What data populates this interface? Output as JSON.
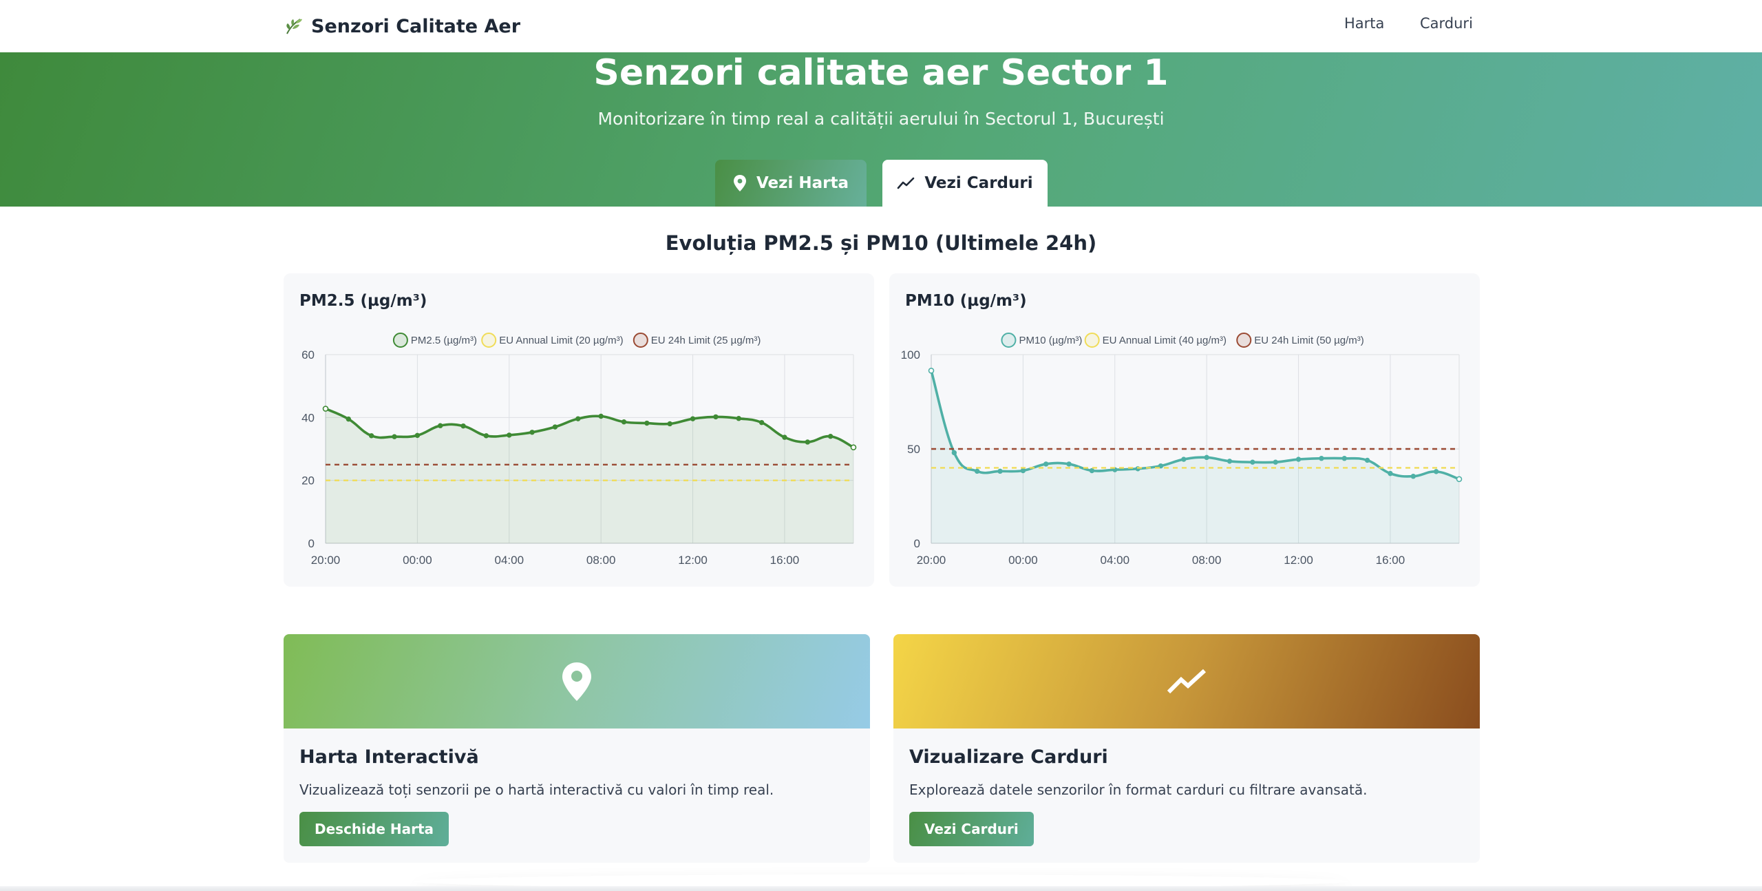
{
  "nav": {
    "brand": "Senzori Calitate Aer",
    "brand_icon": "leaf-icon",
    "links": [
      "Harta",
      "Carduri"
    ]
  },
  "hero": {
    "title": "Senzori calitate aer Sector 1",
    "subtitle": "Monitorizare în timp real a calității aerului în Sectorul 1, București",
    "btn_map": "Vezi Harta",
    "btn_map_icon": "map-pin-icon",
    "btn_cards": "Vezi Carduri",
    "btn_cards_icon": "trend-line-icon"
  },
  "section_title": "Evoluția PM2.5 și PM10 (Ultimele 24h)",
  "chart_data": [
    {
      "type": "line",
      "title": "PM2.5 (µg/m³)",
      "x": [
        "20:00",
        "21:00",
        "22:00",
        "23:00",
        "00:00",
        "01:00",
        "02:00",
        "03:00",
        "04:00",
        "05:00",
        "06:00",
        "07:00",
        "08:00",
        "09:00",
        "10:00",
        "11:00",
        "12:00",
        "13:00",
        "14:00",
        "15:00",
        "16:00",
        "17:00",
        "18:00",
        "19:00"
      ],
      "x_ticks": [
        "20:00",
        "00:00",
        "04:00",
        "08:00",
        "12:00",
        "16:00"
      ],
      "y_ticks": [
        0,
        20,
        40,
        60
      ],
      "ylim": [
        0,
        60
      ],
      "grid": true,
      "legend_position": "top",
      "series": [
        {
          "name": "PM2.5 (µg/m³)",
          "values": [
            42.8,
            39.5,
            34.2,
            33.9,
            34.3,
            37.4,
            37.3,
            34.2,
            34.4,
            35.3,
            37.0,
            39.6,
            40.4,
            38.6,
            38.2,
            38.0,
            39.6,
            40.2,
            39.7,
            38.4,
            33.7,
            32.2,
            34.0,
            30.5
          ],
          "color": "#3f8a35",
          "fill": true
        },
        {
          "name": "EU Annual Limit (20 µg/m³)",
          "values": [
            20,
            20,
            20,
            20,
            20,
            20,
            20,
            20,
            20,
            20,
            20,
            20,
            20,
            20,
            20,
            20,
            20,
            20,
            20,
            20,
            20,
            20,
            20,
            20
          ],
          "color": "#f0dc58",
          "dashed": true
        },
        {
          "name": "EU 24h Limit (25 µg/m³)",
          "values": [
            25,
            25,
            25,
            25,
            25,
            25,
            25,
            25,
            25,
            25,
            25,
            25,
            25,
            25,
            25,
            25,
            25,
            25,
            25,
            25,
            25,
            25,
            25,
            25
          ],
          "color": "#9a4a33",
          "dashed": true
        }
      ]
    },
    {
      "type": "line",
      "title": "PM10 (µg/m³)",
      "x": [
        "20:00",
        "21:00",
        "22:00",
        "23:00",
        "00:00",
        "01:00",
        "02:00",
        "03:00",
        "04:00",
        "05:00",
        "06:00",
        "07:00",
        "08:00",
        "09:00",
        "10:00",
        "11:00",
        "12:00",
        "13:00",
        "14:00",
        "15:00",
        "16:00",
        "17:00",
        "18:00",
        "19:00"
      ],
      "x_ticks": [
        "20:00",
        "00:00",
        "04:00",
        "08:00",
        "12:00",
        "16:00"
      ],
      "y_ticks": [
        0,
        50,
        100
      ],
      "ylim": [
        0,
        100
      ],
      "grid": true,
      "legend_position": "top",
      "series": [
        {
          "name": "PM10 (µg/m³)",
          "values": [
            91.5,
            48.0,
            38.2,
            38.2,
            38.5,
            42.0,
            42.0,
            38.5,
            39.0,
            39.5,
            41.0,
            44.5,
            45.5,
            43.5,
            43.0,
            43.0,
            44.5,
            45.0,
            45.0,
            44.0,
            37.0,
            35.5,
            38.0,
            34.0
          ],
          "color": "#4fb0a6",
          "fill": true
        },
        {
          "name": "EU Annual Limit (40 µg/m³)",
          "values": [
            40,
            40,
            40,
            40,
            40,
            40,
            40,
            40,
            40,
            40,
            40,
            40,
            40,
            40,
            40,
            40,
            40,
            40,
            40,
            40,
            40,
            40,
            40,
            40
          ],
          "color": "#f0dc58",
          "dashed": true
        },
        {
          "name": "EU 24h Limit (50 µg/m³)",
          "values": [
            50,
            50,
            50,
            50,
            50,
            50,
            50,
            50,
            50,
            50,
            50,
            50,
            50,
            50,
            50,
            50,
            50,
            50,
            50,
            50,
            50,
            50,
            50,
            50
          ],
          "color": "#9a4a33",
          "dashed": true
        }
      ]
    }
  ],
  "features": [
    {
      "title": "Harta Interactivă",
      "description": "Vizualizează toți senzorii pe o hartă interactivă cu valori în timp real.",
      "button": "Deschide Harta",
      "icon": "map-pin-icon"
    },
    {
      "title": "Vizualizare Carduri",
      "description": "Explorează datele senzorilor în format carduri cu filtrare avansată.",
      "button": "Vezi Carduri",
      "icon": "trend-line-icon"
    }
  ]
}
